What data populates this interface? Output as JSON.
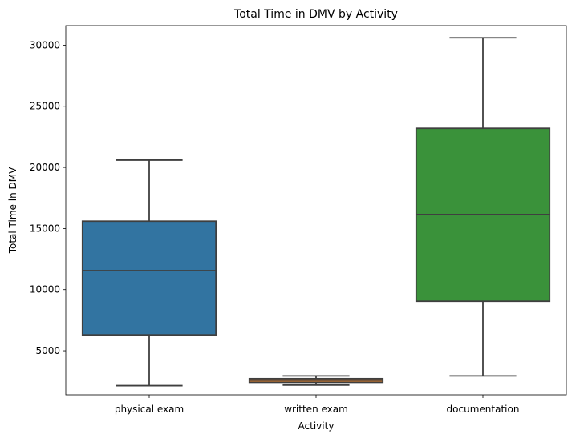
{
  "chart_data": {
    "type": "box",
    "title": "Total Time in DMV by Activity",
    "xlabel": "Activity",
    "ylabel": "Total Time in DMV",
    "ylim": [
      1400,
      31600
    ],
    "yticks": [
      5000,
      10000,
      15000,
      20000,
      25000,
      30000
    ],
    "yticklabels": [
      "5000",
      "10000",
      "15000",
      "20000",
      "25000",
      "30000"
    ],
    "grid": false,
    "legend": "none",
    "categories": [
      "physical exam",
      "written exam",
      "documentation"
    ],
    "boxes": [
      {
        "category": "physical exam",
        "whisker_low": 2150,
        "q1": 6300,
        "median": 11550,
        "q3": 15600,
        "whisker_high": 20600,
        "color": "#3274a1"
      },
      {
        "category": "written exam",
        "whisker_low": 2200,
        "q1": 2420,
        "median": 2600,
        "q3": 2720,
        "whisker_high": 2950,
        "color": "#e1812c"
      },
      {
        "category": "documentation",
        "whisker_low": 2950,
        "q1": 9050,
        "median": 16150,
        "q3": 23200,
        "whisker_high": 30600,
        "color": "#3a923a"
      }
    ]
  }
}
